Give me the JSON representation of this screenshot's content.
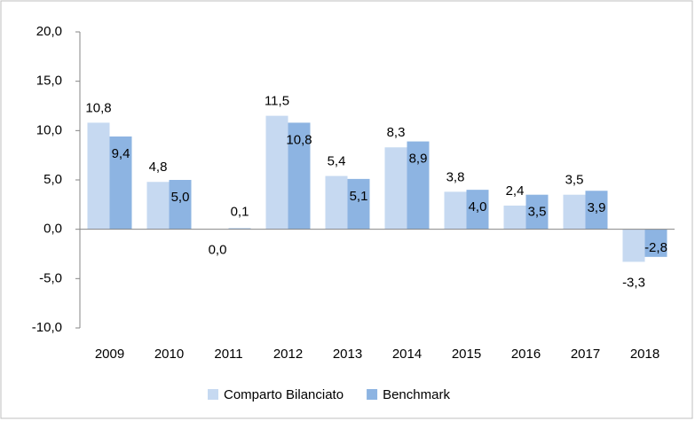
{
  "chart_data": {
    "type": "bar",
    "categories": [
      "2009",
      "2010",
      "2011",
      "2012",
      "2013",
      "2014",
      "2015",
      "2016",
      "2017",
      "2018"
    ],
    "series": [
      {
        "name": "Comparto Bilanciato",
        "color": "#c6d9f1",
        "values": [
          10.8,
          4.8,
          0.0,
          11.5,
          5.4,
          8.3,
          3.8,
          2.4,
          3.5,
          -3.3
        ],
        "value_labels": [
          "10,8",
          "4,8",
          "0,0",
          "11,5",
          "5,4",
          "8,3",
          "3,8",
          "2,4",
          "3,5",
          "-3,3"
        ]
      },
      {
        "name": "Benchmark",
        "color": "#8db4e2",
        "values": [
          9.4,
          5.0,
          0.1,
          10.8,
          5.1,
          8.9,
          4.0,
          3.5,
          3.9,
          -2.8
        ],
        "value_labels": [
          "9,4",
          "5,0",
          "0,1",
          "10,8",
          "5,1",
          "8,9",
          "4,0",
          "3,5",
          "3,9",
          "-2,8"
        ]
      }
    ],
    "ylim": [
      -10,
      20
    ],
    "yticks": [
      {
        "value": -10,
        "label": "-10,0"
      },
      {
        "value": -5,
        "label": "-5,0"
      },
      {
        "value": 0,
        "label": "0,0"
      },
      {
        "value": 5,
        "label": "5,0"
      },
      {
        "value": 10,
        "label": "10,0"
      },
      {
        "value": 15,
        "label": "15,0"
      },
      {
        "value": 20,
        "label": "20,0"
      }
    ],
    "legend": "bottom"
  }
}
